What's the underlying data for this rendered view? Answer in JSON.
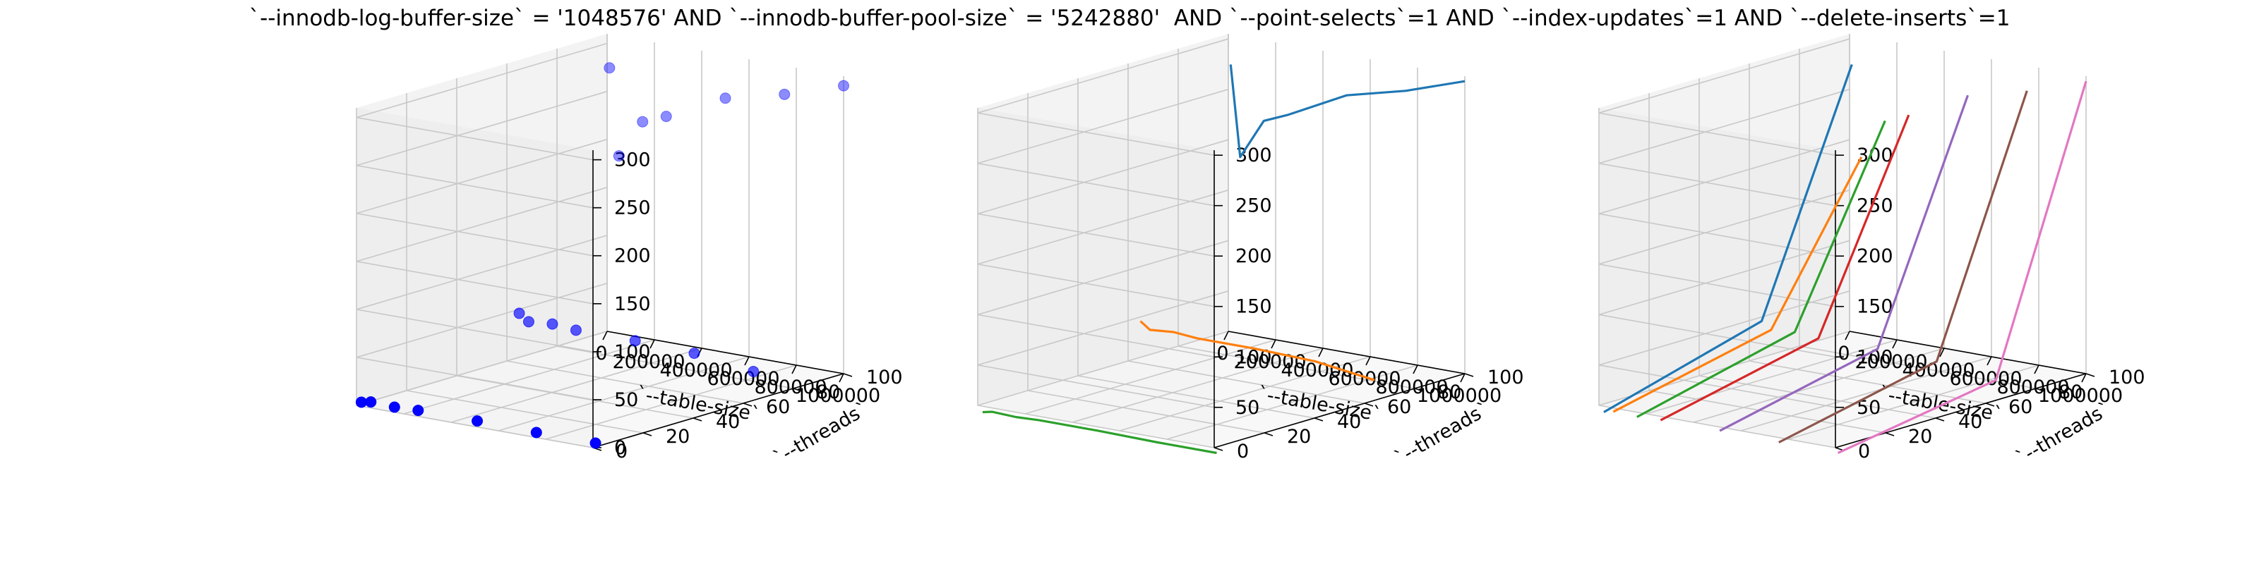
{
  "figure": {
    "title": "`--innodb-log-buffer-size` = '1048576' AND `--innodb-buffer-pool-size` = '5242880'  AND `--point-selects`=1 AND `--index-updates`=1 AND `--delete-inserts`=1"
  },
  "chart_data": [
    {
      "type": "scatter",
      "xlabel": "`--table-size`",
      "ylabel": "`--threads`",
      "zlabel": "",
      "xlim": [
        0,
        1000000
      ],
      "ylim": [
        0,
        100
      ],
      "zlim": [
        0,
        310
      ],
      "x_ticks": [
        "0",
        "200000",
        "400000",
        "600000",
        "800000",
        "1000000"
      ],
      "y_ticks": [
        "0",
        "20",
        "40",
        "60",
        "80",
        "100"
      ],
      "z_ticks": [
        "0",
        "50",
        "100",
        "150",
        "200",
        "250",
        "300"
      ],
      "grid": true,
      "color": "#0000ff",
      "points": [
        {
          "x": 10000,
          "y": 1,
          "z": 3
        },
        {
          "x": 50000,
          "y": 1,
          "z": 5
        },
        {
          "x": 150000,
          "y": 1,
          "z": 4
        },
        {
          "x": 250000,
          "y": 1,
          "z": 5
        },
        {
          "x": 500000,
          "y": 1,
          "z": 5
        },
        {
          "x": 750000,
          "y": 1,
          "z": 4
        },
        {
          "x": 1000000,
          "y": 1,
          "z": 4
        },
        {
          "x": 10000,
          "y": 64,
          "z": 47
        },
        {
          "x": 50000,
          "y": 64,
          "z": 40
        },
        {
          "x": 150000,
          "y": 64,
          "z": 42
        },
        {
          "x": 250000,
          "y": 64,
          "z": 40
        },
        {
          "x": 500000,
          "y": 64,
          "z": 40
        },
        {
          "x": 750000,
          "y": 64,
          "z": 38
        },
        {
          "x": 1000000,
          "y": 64,
          "z": 30
        },
        {
          "x": 10000,
          "y": 100,
          "z": 275
        },
        {
          "x": 50000,
          "y": 100,
          "z": 185
        },
        {
          "x": 150000,
          "y": 100,
          "z": 225
        },
        {
          "x": 250000,
          "y": 100,
          "z": 235
        },
        {
          "x": 500000,
          "y": 100,
          "z": 265
        },
        {
          "x": 750000,
          "y": 100,
          "z": 280
        },
        {
          "x": 1000000,
          "y": 100,
          "z": 300
        }
      ]
    },
    {
      "type": "line",
      "xlabel": "`--table-size`",
      "ylabel": "`--threads`",
      "zlabel": "",
      "xlim": [
        0,
        1000000
      ],
      "ylim": [
        0,
        100
      ],
      "zlim": [
        10,
        305
      ],
      "x_ticks": [
        "0",
        "200000",
        "400000",
        "600000",
        "800000",
        "1000000"
      ],
      "y_ticks": [
        "0",
        "20",
        "40",
        "60",
        "80",
        "100"
      ],
      "z_ticks": [
        "50",
        "100",
        "150",
        "200",
        "250",
        "300"
      ],
      "grid": true,
      "series": [
        {
          "color": "#2ca02c",
          "y": 1,
          "x": [
            10000,
            50000,
            150000,
            250000,
            500000,
            750000,
            1000000
          ],
          "z": [
            3,
            5,
            4,
            5,
            5,
            4,
            4
          ]
        },
        {
          "color": "#ff7f0e",
          "y": 64,
          "x": [
            10000,
            50000,
            150000,
            250000,
            500000,
            750000,
            1000000
          ],
          "z": [
            47,
            40,
            42,
            40,
            40,
            38,
            30
          ]
        },
        {
          "color": "#1f77b4",
          "y": 100,
          "x": [
            10000,
            50000,
            150000,
            250000,
            500000,
            750000,
            1000000
          ],
          "z": [
            275,
            185,
            225,
            235,
            265,
            280,
            300
          ]
        }
      ]
    },
    {
      "type": "line",
      "xlabel": "`--table-size`",
      "ylabel": "`--threads`",
      "zlabel": "",
      "xlim": [
        0,
        1000000
      ],
      "ylim": [
        0,
        100
      ],
      "zlim": [
        10,
        305
      ],
      "x_ticks": [
        "0",
        "200000",
        "400000",
        "600000",
        "800000",
        "1000000"
      ],
      "y_ticks": [
        "0",
        "20",
        "40",
        "60",
        "80",
        "100"
      ],
      "z_ticks": [
        "50",
        "100",
        "150",
        "200",
        "250",
        "300"
      ],
      "grid": true,
      "series": [
        {
          "color": "#1f77b4",
          "x": 10000,
          "y": [
            1,
            64,
            100
          ],
          "z": [
            3,
            47,
            275
          ]
        },
        {
          "color": "#ff7f0e",
          "x": 50000,
          "y": [
            1,
            64,
            100
          ],
          "z": [
            5,
            40,
            185
          ]
        },
        {
          "color": "#2ca02c",
          "x": 150000,
          "y": [
            1,
            64,
            100
          ],
          "z": [
            4,
            42,
            225
          ]
        },
        {
          "color": "#d62728",
          "x": 250000,
          "y": [
            1,
            64,
            100
          ],
          "z": [
            5,
            40,
            235
          ]
        },
        {
          "color": "#9467bd",
          "x": 500000,
          "y": [
            1,
            64,
            100
          ],
          "z": [
            5,
            40,
            265
          ]
        },
        {
          "color": "#8c564b",
          "x": 750000,
          "y": [
            1,
            64,
            100
          ],
          "z": [
            4,
            38,
            280
          ]
        },
        {
          "color": "#e377c2",
          "x": 1000000,
          "y": [
            1,
            64,
            100
          ],
          "z": [
            4,
            30,
            300
          ]
        }
      ]
    }
  ]
}
